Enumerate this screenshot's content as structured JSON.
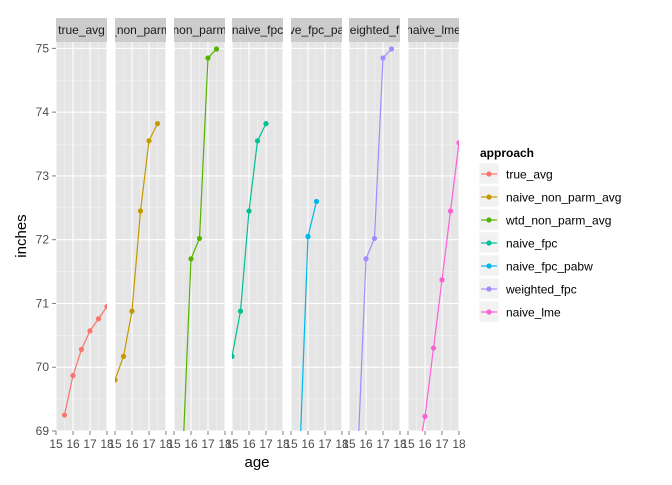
{
  "chart_data": {
    "type": "line",
    "xlabel": "age",
    "ylabel": "inches",
    "facet_by": "approach",
    "ylim": [
      69,
      75.1
    ],
    "xlim": [
      15,
      18
    ],
    "x_ticks": [
      15,
      16,
      17,
      18
    ],
    "y_ticks": [
      69,
      70,
      71,
      72,
      73,
      74,
      75
    ],
    "grid": true,
    "legend": {
      "title": "approach",
      "placement": "right",
      "items": [
        "true_avg",
        "naive_non_parm_avg",
        "wtd_non_parm_avg",
        "naive_fpc",
        "naive_fpc_pabw",
        "weighted_fpc",
        "naive_lme"
      ]
    },
    "panel_strip_labels": [
      "true_avg",
      "_non_parm",
      "non_parm",
      "naive_fpc",
      "ve_fpc_pa",
      "eighted_f",
      "naive_lme"
    ],
    "series": [
      {
        "name": "true_avg",
        "color": "#F8766D",
        "x": [
          15.5,
          16.0,
          16.5,
          17.0,
          17.5,
          18.0
        ],
        "y": [
          69.25,
          69.87,
          70.28,
          70.57,
          70.76,
          70.95
        ]
      },
      {
        "name": "naive_non_parm_avg",
        "color": "#C49A00",
        "x": [
          15.0,
          15.5,
          16.0,
          16.5,
          17.0,
          17.5
        ],
        "y": [
          69.8,
          70.17,
          70.88,
          72.45,
          73.55,
          73.82
        ]
      },
      {
        "name": "wtd_non_parm_avg",
        "color": "#53B400",
        "x": [
          15.5,
          16.0,
          16.5,
          17.0,
          17.5
        ],
        "y": [
          68.5,
          71.7,
          72.02,
          74.85,
          74.99
        ]
      },
      {
        "name": "naive_fpc",
        "color": "#00C094",
        "x": [
          15.0,
          15.5,
          16.0,
          16.5,
          17.0
        ],
        "y": [
          70.17,
          70.88,
          72.45,
          73.55,
          73.82
        ]
      },
      {
        "name": "naive_fpc_pabw",
        "color": "#00B6EB",
        "x": [
          15.5,
          16.0,
          16.5
        ],
        "y": [
          68.5,
          72.05,
          72.6
        ]
      },
      {
        "name": "weighted_fpc",
        "color": "#A58AFF",
        "x": [
          15.5,
          16.0,
          16.5,
          17.0,
          17.5
        ],
        "y": [
          68.5,
          71.7,
          72.02,
          74.85,
          74.99
        ]
      },
      {
        "name": "naive_lme",
        "color": "#FB61D7",
        "x": [
          15.5,
          16.0,
          16.5,
          17.0,
          17.5,
          18.0
        ],
        "y": [
          68.5,
          69.23,
          70.3,
          71.37,
          72.45,
          73.52
        ]
      }
    ]
  }
}
